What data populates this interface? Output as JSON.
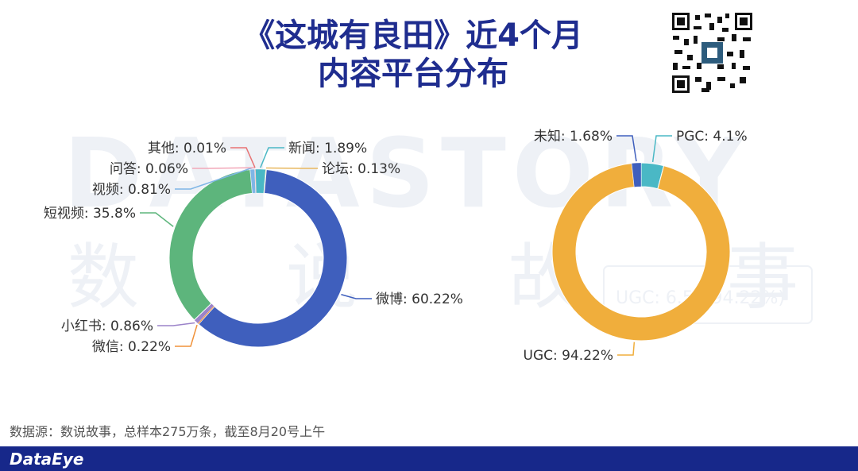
{
  "header": {
    "title_line1": "《这城有良田》近4个月",
    "title_line2": "内容平台分布"
  },
  "watermark": {
    "latin": "DATASTORY",
    "chars": [
      "数",
      "说",
      "故",
      "事"
    ],
    "ghost_label": "UGC: 6.59(94.22%)"
  },
  "chart_data": [
    {
      "type": "pie",
      "donut": true,
      "labels": [
        "新闻",
        "论坛",
        "微博",
        "微信",
        "小红书",
        "短视频",
        "视频",
        "问答",
        "其他"
      ],
      "values": [
        1.89,
        0.13,
        60.22,
        0.22,
        0.86,
        35.8,
        0.81,
        0.06,
        0.01
      ],
      "label_text": [
        "新闻: 1.89%",
        "论坛: 0.13%",
        "微博: 60.22%",
        "微信: 0.22%",
        "小红书: 0.86%",
        "短视频: 35.8%",
        "视频: 0.81%",
        "问答: 0.06%",
        "其他: 0.01%"
      ],
      "colors": [
        "#4ab8c5",
        "#e8b85f",
        "#3f5fbd",
        "#f0923a",
        "#9b83c9",
        "#5db57c",
        "#7fb6e6",
        "#f2a7b8",
        "#e87373"
      ]
    },
    {
      "type": "pie",
      "donut": true,
      "labels": [
        "PGC",
        "UGC",
        "未知"
      ],
      "values": [
        4.1,
        94.22,
        1.68
      ],
      "label_text": [
        "PGC: 4.1%",
        "UGC: 94.22%",
        "未知: 1.68%"
      ],
      "colors": [
        "#4ab8c5",
        "#f0ae3c",
        "#3f5fbd"
      ]
    }
  ],
  "footer": {
    "source": "数据源：数说故事，总样本275万条，截至8月20号上午",
    "brand": "DataEye"
  }
}
